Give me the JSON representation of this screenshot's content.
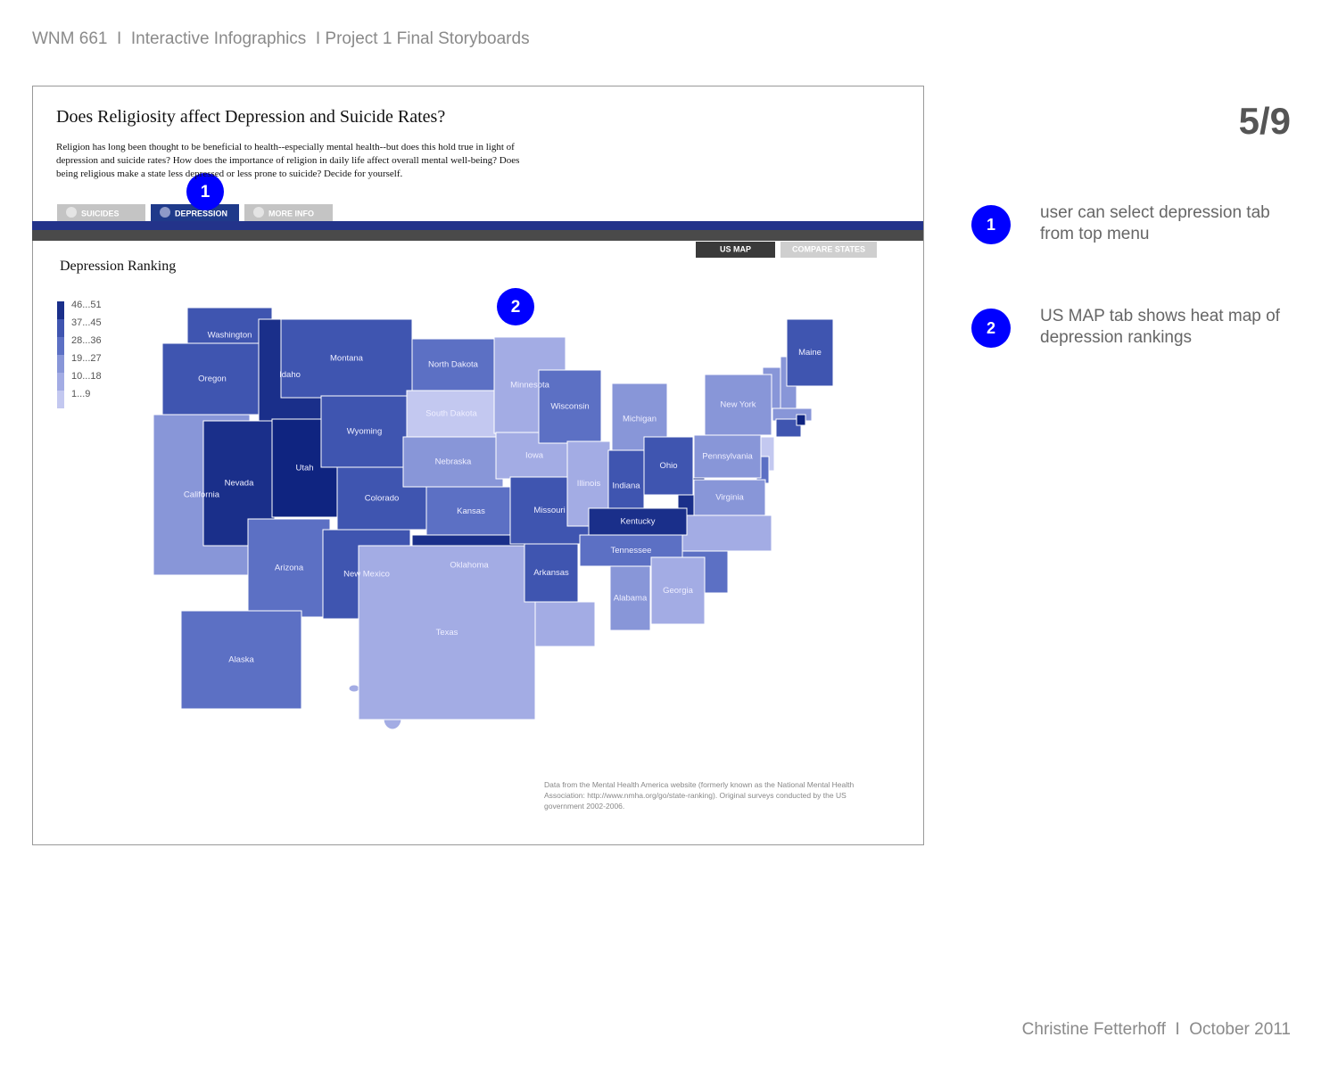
{
  "header": "WNM 661  I  Interactive Infographics  I Project 1 Final Storyboards",
  "page_number": "5/9",
  "footer": "Christine Fetterhoff  I  October 2011",
  "app": {
    "title": "Does Religiosity affect Depression and Suicide Rates?",
    "description": "Religion has long been thought to be beneficial to health--especially mental health--but does this hold true in light of depression and suicide rates? How does the importance of religion in daily life affect overall mental well-being? Does being religious make a state less depressed or less prone to suicide? Decide for yourself.",
    "tabs": [
      {
        "label": "SUICIDES",
        "selected": false
      },
      {
        "label": "DEPRESSION",
        "selected": true
      },
      {
        "label": "MORE INFO",
        "selected": false
      }
    ],
    "subtabs": [
      {
        "label": "US MAP",
        "selected": true
      },
      {
        "label": "COMPARE STATES",
        "selected": false
      }
    ],
    "map_title": "Depression Ranking",
    "legend": [
      {
        "label": "46...51",
        "color": "#1a2f8a"
      },
      {
        "label": "37...45",
        "color": "#3f55b0"
      },
      {
        "label": "28...36",
        "color": "#5c70c4"
      },
      {
        "label": "19...27",
        "color": "#8896d8"
      },
      {
        "label": "10...18",
        "color": "#a3acE4"
      },
      {
        "label": "1...9",
        "color": "#c3c8f0"
      }
    ],
    "states": [
      {
        "name": "Washington",
        "color": "#3f55b0"
      },
      {
        "name": "Oregon",
        "color": "#3f55b0"
      },
      {
        "name": "California",
        "color": "#8896d8"
      },
      {
        "name": "Idaho",
        "color": "#1a2f8a"
      },
      {
        "name": "Nevada",
        "color": "#1a2f8a"
      },
      {
        "name": "Utah",
        "color": "#0f2480"
      },
      {
        "name": "Arizona",
        "color": "#5c70c4"
      },
      {
        "name": "Montana",
        "color": "#3f55b0"
      },
      {
        "name": "Wyoming",
        "color": "#3f55b0"
      },
      {
        "name": "Colorado",
        "color": "#3f55b0"
      },
      {
        "name": "New Mexico",
        "color": "#3f55b0"
      },
      {
        "name": "North Dakota",
        "color": "#5c70c4"
      },
      {
        "name": "South Dakota",
        "color": "#c3c8f0"
      },
      {
        "name": "Nebraska",
        "color": "#8896d8"
      },
      {
        "name": "Kansas",
        "color": "#5c70c4"
      },
      {
        "name": "Oklahoma",
        "color": "#1a2f8a"
      },
      {
        "name": "Texas",
        "color": "#a3ace4"
      },
      {
        "name": "Minnesota",
        "color": "#a3ace4"
      },
      {
        "name": "Iowa",
        "color": "#a3ace4"
      },
      {
        "name": "Missouri",
        "color": "#3f55b0"
      },
      {
        "name": "Arkansas",
        "color": "#3f55b0"
      },
      {
        "name": "Wisconsin",
        "color": "#5c70c4"
      },
      {
        "name": "Illinois",
        "color": "#a3ace4"
      },
      {
        "name": "Michigan",
        "color": "#8896d8"
      },
      {
        "name": "Indiana",
        "color": "#3f55b0"
      },
      {
        "name": "Ohio",
        "color": "#3f55b0"
      },
      {
        "name": "Kentucky",
        "color": "#1a2f8a"
      },
      {
        "name": "Tennessee",
        "color": "#5c70c4"
      },
      {
        "name": "Alabama",
        "color": "#8896d8"
      },
      {
        "name": "Georgia",
        "color": "#a3ace4"
      },
      {
        "name": "Virginia",
        "color": "#8896d8"
      },
      {
        "name": "Pennsylvania",
        "color": "#8896d8"
      },
      {
        "name": "New York",
        "color": "#8896d8"
      },
      {
        "name": "Maine",
        "color": "#3f55b0"
      },
      {
        "name": "Alaska",
        "color": "#5c70c4"
      }
    ],
    "source": "Data from the Mental Health America website (formerly known as the National Mental Health Association: http://www.nmha.org/go/state-ranking). Original surveys conducted by the US government 2002-2006."
  },
  "callouts": [
    {
      "number": 1,
      "text": "user can select depression tab from top menu"
    },
    {
      "number": 2,
      "text": "US MAP tab shows heat map of depression rankings"
    }
  ]
}
